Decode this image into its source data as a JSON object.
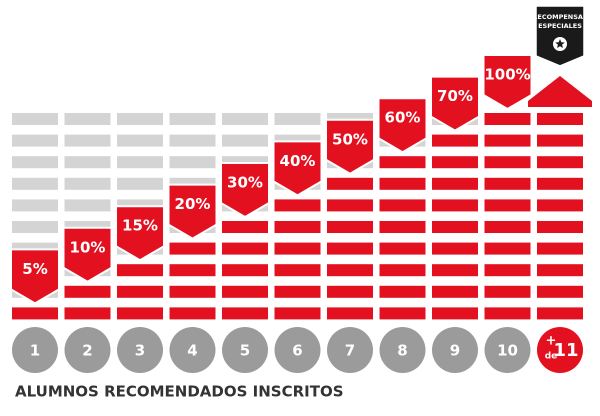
{
  "columns": [
    {
      "number": "1",
      "reward": "5%"
    },
    {
      "number": "2",
      "reward": "10%"
    },
    {
      "number": "3",
      "reward": "15%"
    },
    {
      "number": "4",
      "reward": "20%"
    },
    {
      "number": "5",
      "reward": "30%"
    },
    {
      "number": "6",
      "reward": "40%"
    },
    {
      "number": "7",
      "reward": "50%"
    },
    {
      "number": "8",
      "reward": "60%"
    },
    {
      "number": "9",
      "reward": "70%"
    },
    {
      "number": "10",
      "reward": "100%"
    }
  ],
  "special": {
    "badge": [
      "RECOMPENSAS",
      "ESPECIALES"
    ],
    "plus": "+",
    "de": "de",
    "number": "11"
  },
  "footer": "ALUMNOS RECOMENDADOS INSCRITOS"
}
